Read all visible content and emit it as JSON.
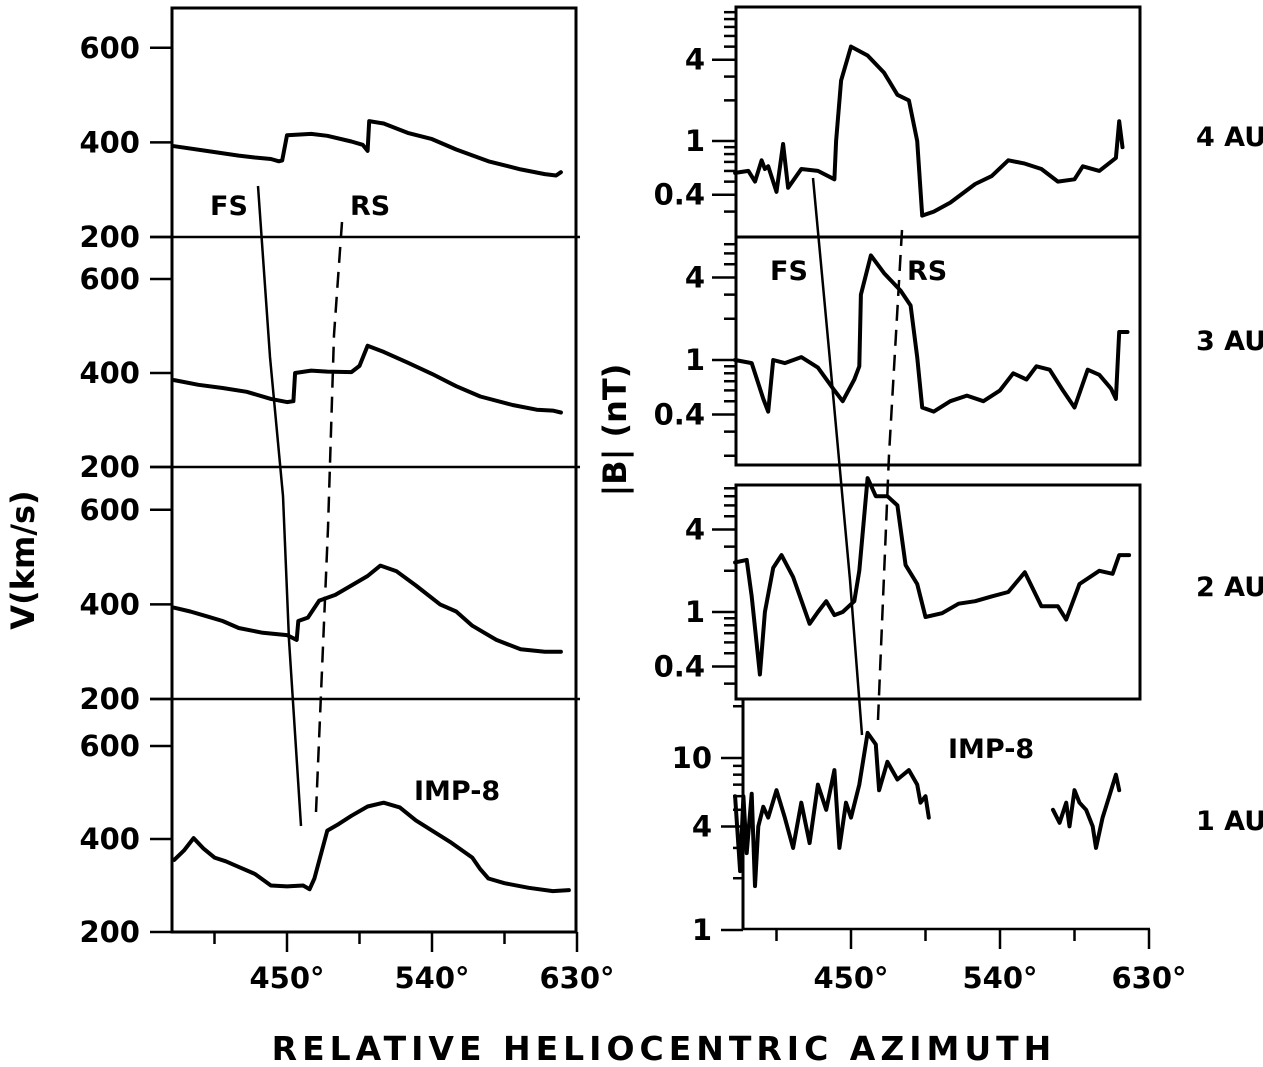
{
  "x_axis": {
    "label": "RELATIVE HELIOCENTRIC AZIMUTH",
    "tick_labels": [
      "450°",
      "540°",
      "630°"
    ],
    "tick_values": [
      450,
      540,
      630
    ],
    "minor_tick_values": [
      405,
      495,
      585
    ],
    "range": [
      380,
      630
    ]
  },
  "left_axis": {
    "label": "V(km/s)",
    "tick_labels": [
      "200",
      "400",
      "600"
    ],
    "tick_values": [
      200,
      400,
      600
    ],
    "range": [
      200,
      640
    ]
  },
  "right_axis": {
    "label": "|B| (nT)",
    "scale": "log",
    "upper_panel_tick_labels": [
      "0.4",
      "1",
      "4"
    ],
    "upper_panel_tick_values": [
      0.4,
      1,
      4
    ],
    "upper_panel_range": [
      0.2,
      12
    ],
    "bottom_panel_tick_labels": [
      "1",
      "4",
      "10"
    ],
    "bottom_panel_tick_values": [
      1,
      4,
      10
    ],
    "bottom_panel_range": [
      0.85,
      25
    ]
  },
  "panel_labels": [
    "4 AU",
    "3 AU",
    "2 AU",
    "1 AU"
  ],
  "marker_labels": {
    "forward_shock": "FS",
    "reverse_shock": "RS",
    "spacecraft": "IMP-8"
  },
  "chart_data": [
    {
      "type": "line",
      "panel": "velocity",
      "quantity": "V (km/s)",
      "x_label": "RELATIVE HELIOCENTRIC AZIMUTH",
      "y_label": "V(km/s)",
      "xlim": [
        380,
        630
      ],
      "ylim": [
        200,
        640
      ],
      "series": [
        {
          "name": "4 AU",
          "points": [
            [
              380,
              392
            ],
            [
              400,
              382
            ],
            [
              420,
              372
            ],
            [
              430,
              368
            ],
            [
              440,
              365
            ],
            [
              445,
              360
            ],
            [
              447,
              362
            ],
            [
              450,
              415
            ],
            [
              465,
              418
            ],
            [
              475,
              414
            ],
            [
              490,
              402
            ],
            [
              497,
              395
            ],
            [
              500,
              382
            ],
            [
              501,
              445
            ],
            [
              510,
              440
            ],
            [
              525,
              420
            ],
            [
              540,
              407
            ],
            [
              555,
              385
            ],
            [
              575,
              360
            ],
            [
              595,
              343
            ],
            [
              610,
              333
            ],
            [
              617,
              330
            ],
            [
              620,
              337
            ]
          ]
        },
        {
          "name": "3 AU",
          "points": [
            [
              380,
              385
            ],
            [
              395,
              375
            ],
            [
              410,
              368
            ],
            [
              425,
              360
            ],
            [
              440,
              345
            ],
            [
              450,
              338
            ],
            [
              454,
              340
            ],
            [
              455,
              400
            ],
            [
              465,
              405
            ],
            [
              475,
              403
            ],
            [
              490,
              402
            ],
            [
              495,
              415
            ],
            [
              500,
              458
            ],
            [
              510,
              445
            ],
            [
              525,
              422
            ],
            [
              540,
              398
            ],
            [
              555,
              372
            ],
            [
              570,
              350
            ],
            [
              590,
              332
            ],
            [
              605,
              322
            ],
            [
              615,
              320
            ],
            [
              620,
              316
            ]
          ]
        },
        {
          "name": "2 AU",
          "points": [
            [
              380,
              393
            ],
            [
              390,
              385
            ],
            [
              400,
              375
            ],
            [
              410,
              365
            ],
            [
              420,
              350
            ],
            [
              435,
              340
            ],
            [
              450,
              335
            ],
            [
              456,
              325
            ],
            [
              457,
              365
            ],
            [
              463,
              372
            ],
            [
              470,
              408
            ],
            [
              480,
              420
            ],
            [
              490,
              440
            ],
            [
              500,
              460
            ],
            [
              508,
              482
            ],
            [
              518,
              470
            ],
            [
              530,
              440
            ],
            [
              545,
              400
            ],
            [
              555,
              385
            ],
            [
              565,
              355
            ],
            [
              580,
              325
            ],
            [
              595,
              305
            ],
            [
              610,
              300
            ],
            [
              620,
              300
            ]
          ]
        },
        {
          "name": "1 AU",
          "points": [
            [
              380,
              355
            ],
            [
              386,
              375
            ],
            [
              392,
              402
            ],
            [
              398,
              380
            ],
            [
              405,
              360
            ],
            [
              412,
              352
            ],
            [
              420,
              340
            ],
            [
              430,
              325
            ],
            [
              440,
              300
            ],
            [
              450,
              298
            ],
            [
              460,
              300
            ],
            [
              464,
              292
            ],
            [
              467,
              315
            ],
            [
              475,
              418
            ],
            [
              482,
              432
            ],
            [
              490,
              450
            ],
            [
              500,
              470
            ],
            [
              510,
              478
            ],
            [
              520,
              468
            ],
            [
              530,
              440
            ],
            [
              540,
              418
            ],
            [
              552,
              392
            ],
            [
              565,
              360
            ],
            [
              570,
              335
            ],
            [
              575,
              315
            ],
            [
              585,
              305
            ],
            [
              600,
              295
            ],
            [
              615,
              288
            ],
            [
              625,
              290
            ]
          ]
        }
      ]
    },
    {
      "type": "line",
      "panel": "magnetic_field",
      "quantity": "|B| (nT)",
      "x_label": "RELATIVE HELIOCENTRIC AZIMUTH",
      "y_label": "|B| (nT)",
      "xlim": [
        380,
        630
      ],
      "y_scale": "log",
      "series": [
        {
          "name": "4 AU",
          "points": [
            [
              380,
              0.58
            ],
            [
              388,
              0.6
            ],
            [
              392,
              0.5
            ],
            [
              396,
              0.72
            ],
            [
              398,
              0.62
            ],
            [
              400,
              0.65
            ],
            [
              405,
              0.42
            ],
            [
              409,
              0.95
            ],
            [
              412,
              0.45
            ],
            [
              420,
              0.62
            ],
            [
              430,
              0.6
            ],
            [
              440,
              0.52
            ],
            [
              441,
              1.0
            ],
            [
              444,
              2.8
            ],
            [
              450,
              5.0
            ],
            [
              460,
              4.3
            ],
            [
              470,
              3.2
            ],
            [
              478,
              2.2
            ],
            [
              485,
              2.0
            ],
            [
              490,
              1.0
            ],
            [
              493,
              0.28
            ],
            [
              500,
              0.3
            ],
            [
              510,
              0.35
            ],
            [
              525,
              0.48
            ],
            [
              535,
              0.55
            ],
            [
              545,
              0.72
            ],
            [
              555,
              0.68
            ],
            [
              565,
              0.62
            ],
            [
              575,
              0.5
            ],
            [
              585,
              0.52
            ],
            [
              590,
              0.65
            ],
            [
              600,
              0.6
            ],
            [
              610,
              0.75
            ],
            [
              612,
              1.4
            ],
            [
              614,
              0.9
            ]
          ]
        },
        {
          "name": "3 AU",
          "points": [
            [
              380,
              1.0
            ],
            [
              390,
              0.95
            ],
            [
              397,
              0.52
            ],
            [
              400,
              0.42
            ],
            [
              403,
              1.0
            ],
            [
              410,
              0.95
            ],
            [
              420,
              1.05
            ],
            [
              430,
              0.88
            ],
            [
              440,
              0.6
            ],
            [
              445,
              0.5
            ],
            [
              452,
              0.72
            ],
            [
              455,
              0.9
            ],
            [
              456,
              3.0
            ],
            [
              462,
              5.8
            ],
            [
              470,
              4.3
            ],
            [
              480,
              3.2
            ],
            [
              486,
              2.5
            ],
            [
              490,
              1.05
            ],
            [
              493,
              0.45
            ],
            [
              500,
              0.42
            ],
            [
              510,
              0.5
            ],
            [
              520,
              0.55
            ],
            [
              530,
              0.5
            ],
            [
              540,
              0.6
            ],
            [
              548,
              0.8
            ],
            [
              556,
              0.72
            ],
            [
              562,
              0.9
            ],
            [
              570,
              0.85
            ],
            [
              578,
              0.6
            ],
            [
              585,
              0.45
            ],
            [
              593,
              0.85
            ],
            [
              600,
              0.78
            ],
            [
              607,
              0.62
            ],
            [
              610,
              0.52
            ],
            [
              612,
              1.6
            ],
            [
              617,
              1.6
            ]
          ]
        },
        {
          "name": "2 AU",
          "points": [
            [
              380,
              2.3
            ],
            [
              387,
              2.4
            ],
            [
              390,
              1.3
            ],
            [
              395,
              0.35
            ],
            [
              398,
              1.0
            ],
            [
              403,
              2.1
            ],
            [
              408,
              2.6
            ],
            [
              415,
              1.8
            ],
            [
              425,
              0.82
            ],
            [
              430,
              1.0
            ],
            [
              435,
              1.2
            ],
            [
              440,
              0.95
            ],
            [
              445,
              1.0
            ],
            [
              452,
              1.2
            ],
            [
              455,
              2.0
            ],
            [
              460,
              9.5
            ],
            [
              465,
              7.0
            ],
            [
              472,
              7.0
            ],
            [
              478,
              6.0
            ],
            [
              483,
              2.2
            ],
            [
              490,
              1.6
            ],
            [
              495,
              0.92
            ],
            [
              505,
              0.98
            ],
            [
              515,
              1.15
            ],
            [
              525,
              1.2
            ],
            [
              535,
              1.3
            ],
            [
              545,
              1.4
            ],
            [
              555,
              1.95
            ],
            [
              565,
              1.1
            ],
            [
              575,
              1.1
            ],
            [
              580,
              0.88
            ],
            [
              588,
              1.6
            ],
            [
              600,
              2.0
            ],
            [
              608,
              1.9
            ],
            [
              612,
              2.6
            ],
            [
              618,
              2.6
            ]
          ]
        },
        {
          "name": "1 AU",
          "points": [
            [
              380,
              6.0
            ],
            [
              383,
              2.2
            ],
            [
              385,
              6.0
            ],
            [
              387,
              2.8
            ],
            [
              390,
              6.2
            ],
            [
              392,
              1.8
            ],
            [
              394,
              4.0
            ],
            [
              397,
              5.2
            ],
            [
              400,
              4.5
            ],
            [
              405,
              6.5
            ],
            [
              410,
              4.5
            ],
            [
              415,
              3.0
            ],
            [
              420,
              5.5
            ],
            [
              425,
              3.2
            ],
            [
              430,
              7.0
            ],
            [
              435,
              5.0
            ],
            [
              440,
              8.5
            ],
            [
              443,
              3.0
            ],
            [
              447,
              5.5
            ],
            [
              450,
              4.5
            ],
            [
              455,
              7.0
            ],
            [
              460,
              14.0
            ],
            [
              465,
              12.0
            ],
            [
              467,
              6.5
            ],
            [
              472,
              9.5
            ],
            [
              478,
              7.5
            ],
            [
              485,
              8.5
            ],
            [
              490,
              7.0
            ],
            [
              492,
              5.5
            ],
            [
              495,
              6.0
            ],
            [
              497,
              4.5
            ]
          ]
        },
        {
          "name": "1 AU (later segment)",
          "points": [
            [
              572,
              5.0
            ],
            [
              576,
              4.2
            ],
            [
              580,
              5.5
            ],
            [
              582,
              4.0
            ],
            [
              585,
              6.5
            ],
            [
              588,
              5.5
            ],
            [
              592,
              5.0
            ],
            [
              596,
              4.0
            ],
            [
              598,
              3.0
            ],
            [
              602,
              4.5
            ],
            [
              606,
              6.0
            ],
            [
              610,
              8.0
            ],
            [
              612,
              6.5
            ]
          ]
        }
      ]
    }
  ]
}
